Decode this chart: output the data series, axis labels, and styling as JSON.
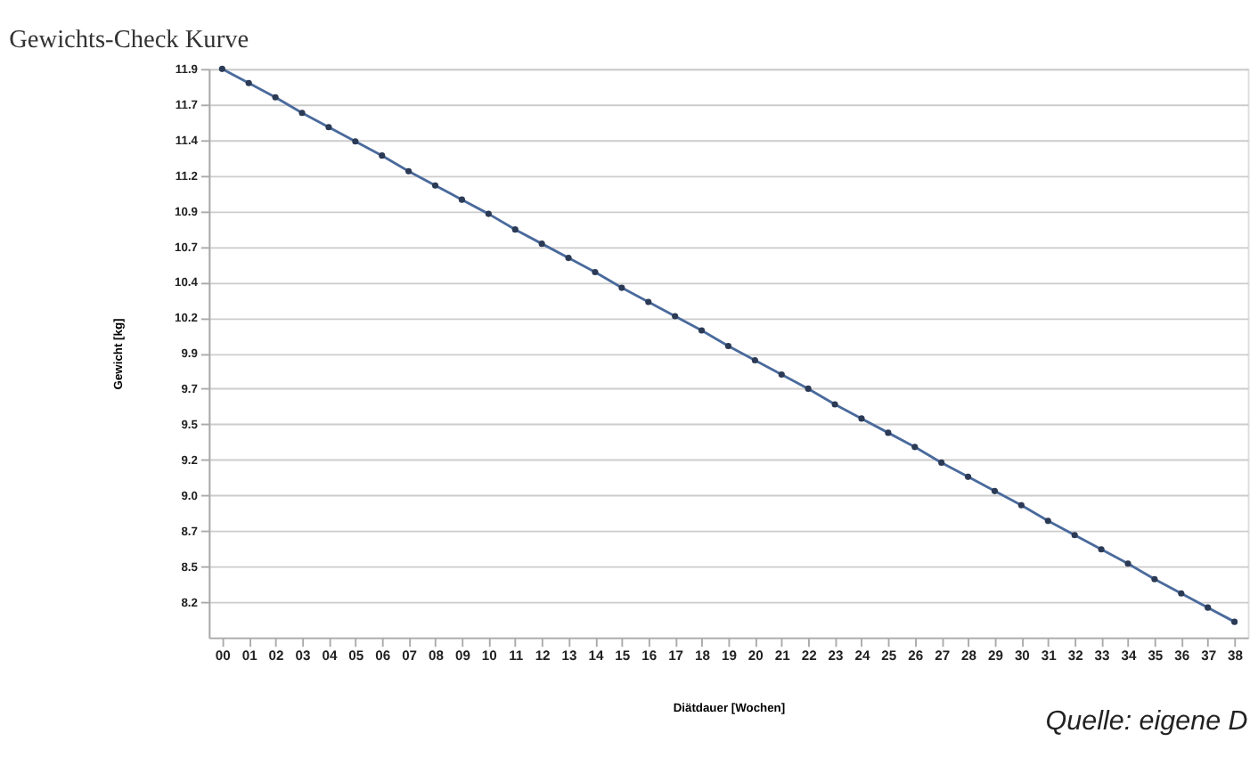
{
  "chart_data": {
    "type": "line",
    "title": "Gewichts-Check Kurve",
    "xlabel": "Diätdauer [Wochen]",
    "ylabel": "Gewicht [kg]",
    "categories": [
      "00",
      "01",
      "02",
      "03",
      "04",
      "05",
      "06",
      "07",
      "08",
      "09",
      "10",
      "11",
      "12",
      "13",
      "14",
      "15",
      "16",
      "17",
      "18",
      "19",
      "20",
      "21",
      "22",
      "23",
      "24",
      "25",
      "26",
      "27",
      "28",
      "29",
      "30",
      "31",
      "32",
      "33",
      "34",
      "35",
      "36",
      "37",
      "38"
    ],
    "series": [
      {
        "color": "#4a6a9c",
        "values": [
          11.95,
          11.85,
          11.75,
          11.64,
          11.54,
          11.44,
          11.34,
          11.23,
          11.13,
          11.03,
          10.93,
          10.82,
          10.72,
          10.62,
          10.52,
          10.41,
          10.31,
          10.21,
          10.11,
          10.0,
          9.9,
          9.8,
          9.7,
          9.59,
          9.49,
          9.39,
          9.29,
          9.18,
          9.08,
          8.98,
          8.88,
          8.77,
          8.67,
          8.57,
          8.47,
          8.36,
          8.26,
          8.16,
          8.06
        ]
      }
    ],
    "ylim": [
      7.95,
      11.95
    ],
    "yticks": [
      {
        "value": 11.95,
        "label": "11.9"
      },
      {
        "value": 11.7,
        "label": "11.7"
      },
      {
        "value": 11.45,
        "label": "11.4"
      },
      {
        "value": 11.2,
        "label": "11.2"
      },
      {
        "value": 10.95,
        "label": "10.9"
      },
      {
        "value": 10.7,
        "label": "10.7"
      },
      {
        "value": 10.45,
        "label": "10.4"
      },
      {
        "value": 10.2,
        "label": "10.2"
      },
      {
        "value": 9.95,
        "label": "9.9"
      },
      {
        "value": 9.7,
        "label": "9.7"
      },
      {
        "value": 9.45,
        "label": "9.5"
      },
      {
        "value": 9.2,
        "label": "9.2"
      },
      {
        "value": 8.95,
        "label": "9.0"
      },
      {
        "value": 8.7,
        "label": "8.7"
      },
      {
        "value": 8.45,
        "label": "8.5"
      },
      {
        "value": 8.2,
        "label": "8.2"
      }
    ],
    "grid": "y",
    "marker": "circle",
    "line_style": "solid",
    "annotations": [
      "Quelle: eigene D"
    ]
  }
}
